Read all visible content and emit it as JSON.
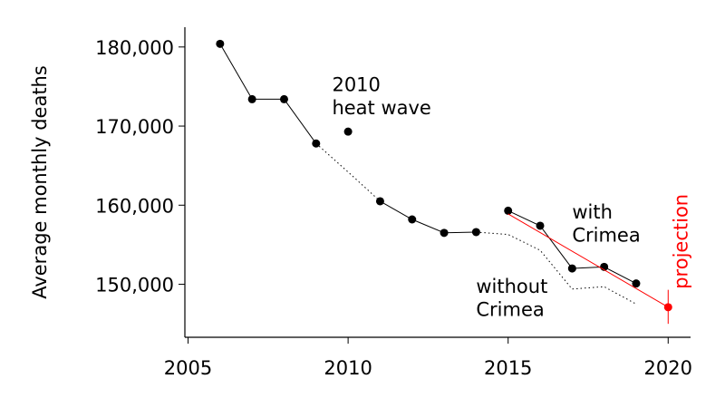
{
  "chart_data": {
    "type": "line",
    "title": "",
    "xlabel": "",
    "ylabel": "Average monthly deaths",
    "xlim": [
      2004.9,
      2020.7
    ],
    "ylim": [
      143300,
      182500
    ],
    "x_ticks": [
      2005,
      2010,
      2015,
      2020
    ],
    "y_ticks": [
      150000,
      160000,
      170000,
      180000
    ],
    "y_tick_labels": [
      "150,000",
      "160,000",
      "170,000",
      "180,000"
    ],
    "grid": false,
    "series": [
      {
        "x": [
          2006,
          2007,
          2008,
          2009
        ],
        "y": [
          180400,
          173400,
          173400,
          167800
        ],
        "style": "solid-markers",
        "color": "#000000"
      },
      {
        "x": [
          2010
        ],
        "y": [
          169300
        ],
        "style": "marker",
        "color": "#000000"
      },
      {
        "x": [
          2009,
          2010,
          2011
        ],
        "y": [
          167800,
          164200,
          160500
        ],
        "style": "dotted",
        "color": "#000000"
      },
      {
        "x": [
          2011,
          2012,
          2013,
          2014
        ],
        "y": [
          160500,
          158200,
          156500,
          156600
        ],
        "style": "solid-markers",
        "color": "#000000"
      },
      {
        "x": [
          2014,
          2015,
          2016,
          2017,
          2018,
          2019
        ],
        "y": [
          156600,
          156300,
          154300,
          149400,
          149700,
          147500
        ],
        "style": "dotted",
        "color": "#000000"
      },
      {
        "x": [
          2015,
          2016,
          2017,
          2018,
          2019
        ],
        "y": [
          159300,
          157400,
          152000,
          152200,
          150100
        ],
        "style": "solid-markers",
        "color": "#000000"
      },
      {
        "x": [
          2015,
          2020
        ],
        "y": [
          158900,
          147100
        ],
        "style": "solid",
        "color": "#ff0000"
      }
    ],
    "projection_point": {
      "x": 2020,
      "y": 147100,
      "err_low": 145000,
      "err_high": 149300,
      "color": "#ff0000"
    },
    "annotations": [
      {
        "lines": [
          "2010",
          "heat wave"
        ],
        "x": 2009.5,
        "y": 174400,
        "color": "#000000"
      },
      {
        "lines": [
          "with",
          "Crimea"
        ],
        "x": 2017.0,
        "y": 158300,
        "color": "#000000"
      },
      {
        "lines": [
          "without",
          "Crimea"
        ],
        "x": 2014.0,
        "y": 148900,
        "color": "#000000"
      },
      {
        "lines": [
          "projection"
        ],
        "x": 2020.4,
        "y": 149400,
        "color": "#ff0000",
        "rotated": true
      }
    ]
  }
}
